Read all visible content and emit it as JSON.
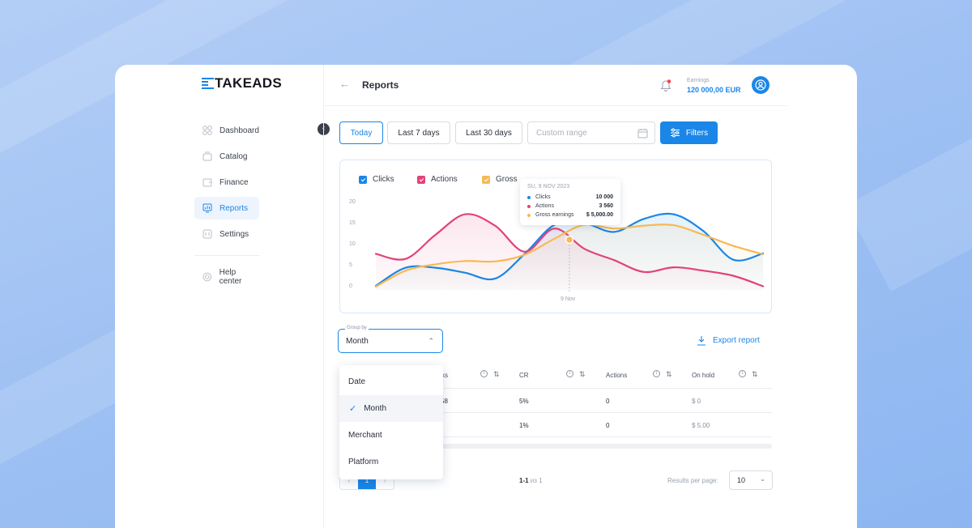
{
  "brand": {
    "logo_text": "TAKEADS",
    "accent": "#1a86e8"
  },
  "sidebar": {
    "items": [
      {
        "label": "Dashboard",
        "icon": "grid-icon"
      },
      {
        "label": "Catalog",
        "icon": "catalog-icon"
      },
      {
        "label": "Finance",
        "icon": "wallet-icon"
      },
      {
        "label": "Reports",
        "icon": "chart-icon",
        "active": true
      },
      {
        "label": "Settings",
        "icon": "settings-icon"
      }
    ],
    "help": {
      "label": "Help center",
      "icon": "help-icon"
    }
  },
  "header": {
    "title": "Reports",
    "earnings_label": "Earnings",
    "earnings_value": "120 000,00 EUR"
  },
  "toolbar": {
    "today": "Today",
    "last7": "Last 7 days",
    "last30": "Last 30 days",
    "custom_range_placeholder": "Custom range",
    "filters": "Filters"
  },
  "chart": {
    "legend": [
      {
        "name": "Clicks",
        "color": "#1a86e8"
      },
      {
        "name": "Actions",
        "color": "#e2427a"
      },
      {
        "name": "Gross",
        "color": "#f7b953"
      }
    ],
    "y_ticks": [
      "20",
      "15",
      "10",
      "5",
      "0"
    ],
    "x_label": "9 Nov",
    "tooltip": {
      "date": "SU, 9 NOV 2023",
      "rows": [
        {
          "label": "Clicks",
          "value": "10 000",
          "color": "#1a86e8"
        },
        {
          "label": "Actions",
          "value": "3 560",
          "color": "#e2427a"
        },
        {
          "label": "Gross earnings",
          "value": "$ 5,000.00",
          "color": "#f7b953"
        }
      ]
    }
  },
  "chart_data": {
    "type": "line",
    "ylim": [
      0,
      20
    ],
    "x_tick_labels": [
      "9 Nov"
    ],
    "series": [
      {
        "name": "Clicks",
        "color": "#1a86e8",
        "values": [
          0.2,
          4.5,
          4.5,
          3.3,
          1.9,
          7.8,
          14.7,
          15.1,
          13.0,
          16.1,
          17.2,
          13.2,
          6.4,
          7.9
        ]
      },
      {
        "name": "Actions",
        "color": "#e2427a",
        "values": [
          7.8,
          6.6,
          12.3,
          17.2,
          14.5,
          8.3,
          13.8,
          9.0,
          6.3,
          3.5,
          4.6,
          3.8,
          2.6,
          0.1
        ]
      },
      {
        "name": "Gross",
        "color": "#f7b953",
        "values": [
          0.0,
          3.8,
          5.3,
          6.1,
          6.0,
          7.6,
          11.4,
          14.7,
          13.8,
          14.5,
          14.6,
          12.3,
          9.7,
          7.7
        ]
      }
    ]
  },
  "groupby": {
    "label": "Group by",
    "value": "Month",
    "options": [
      "Date",
      "Month",
      "Merchant",
      "Platform"
    ]
  },
  "export": {
    "label": "Export report"
  },
  "table": {
    "headers": [
      "Clicks",
      "CR",
      "Actions",
      "On hold"
    ],
    "header_clicks_visible": "cks",
    "rows": [
      [
        "58",
        "5%",
        "0",
        "$ 0"
      ],
      [
        "",
        "1%",
        "0",
        "$ 5.00"
      ]
    ]
  },
  "pagination": {
    "current": "1",
    "count_text": "1-1",
    "count_of": "из 1",
    "rpp_label": "Results per page:",
    "rpp_value": "10"
  }
}
